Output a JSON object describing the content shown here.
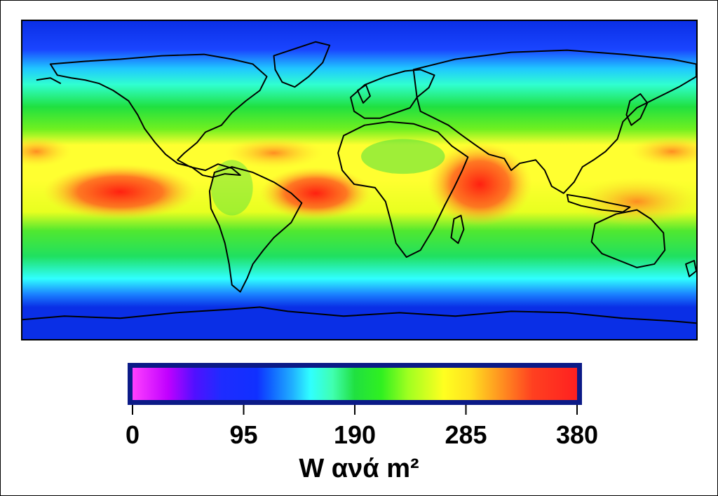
{
  "map": {
    "type": "heatmap",
    "subject": "world map",
    "palette": {
      "low": "#ff40ff",
      "blue": "#1e2cff",
      "cyan": "#30ffff",
      "green": "#20e040",
      "yellow": "#ffff20",
      "orange": "#ff9020",
      "high": "#ff2020"
    }
  },
  "colorbar": {
    "ticks": [
      "0",
      "95",
      "190",
      "285",
      "380"
    ],
    "range": [
      0,
      380
    ],
    "unit_text": "W ανά m²"
  }
}
